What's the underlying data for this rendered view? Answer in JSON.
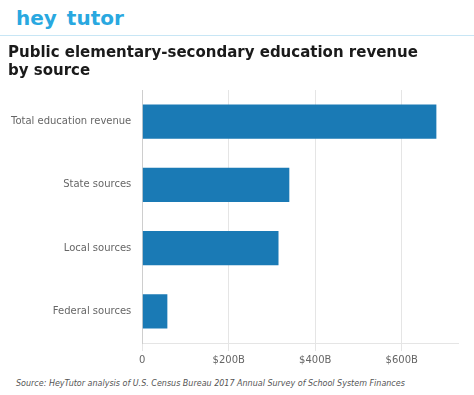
{
  "chart_data": {
    "type": "bar",
    "orientation": "horizontal",
    "title": [
      "Public elementary-secondary education revenue",
      "by source"
    ],
    "categories": [
      "Total education revenue",
      "State sources",
      "Local sources",
      "Federal sources"
    ],
    "values": [
      680,
      340,
      315,
      58
    ],
    "color": "#1a7ab5",
    "xlim": [
      0,
      730
    ],
    "xticks": [
      0,
      {
        "value": 200,
        "label": "$200B"
      },
      {
        "value": 400,
        "label": "$400B"
      },
      {
        "value": 600,
        "label": "$600B"
      }
    ],
    "grid": true,
    "annotations": [
      {
        "text": "hey",
        "color": "#29a8e0"
      },
      {
        "text": "tutor",
        "color": "#29a8e0"
      },
      {
        "text": "Source: HeyTutor analysis of U.S. Census Bureau 2017 Annual Survey of School System Finances"
      }
    ]
  }
}
